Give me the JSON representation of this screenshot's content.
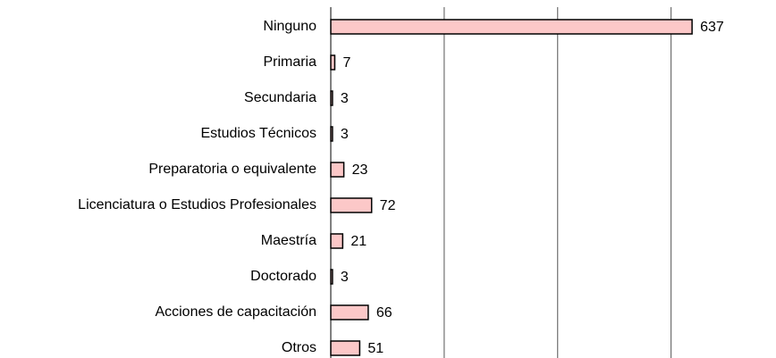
{
  "chart_data": {
    "type": "barh",
    "categories": [
      "Ninguno",
      "Primaria",
      "Secundaria",
      "Estudios Técnicos",
      "Preparatoria o equivalente",
      "Licenciatura o Estudios Profesionales",
      "Maestría",
      "Doctorado",
      "Acciones de capacitación",
      "Otros"
    ],
    "values": [
      637,
      7,
      3,
      3,
      23,
      72,
      21,
      3,
      66,
      51
    ],
    "color": "#fcc8c8",
    "xlim": [
      0,
      785
    ],
    "xticks": [
      0,
      200,
      400,
      600
    ],
    "grid": true
  }
}
